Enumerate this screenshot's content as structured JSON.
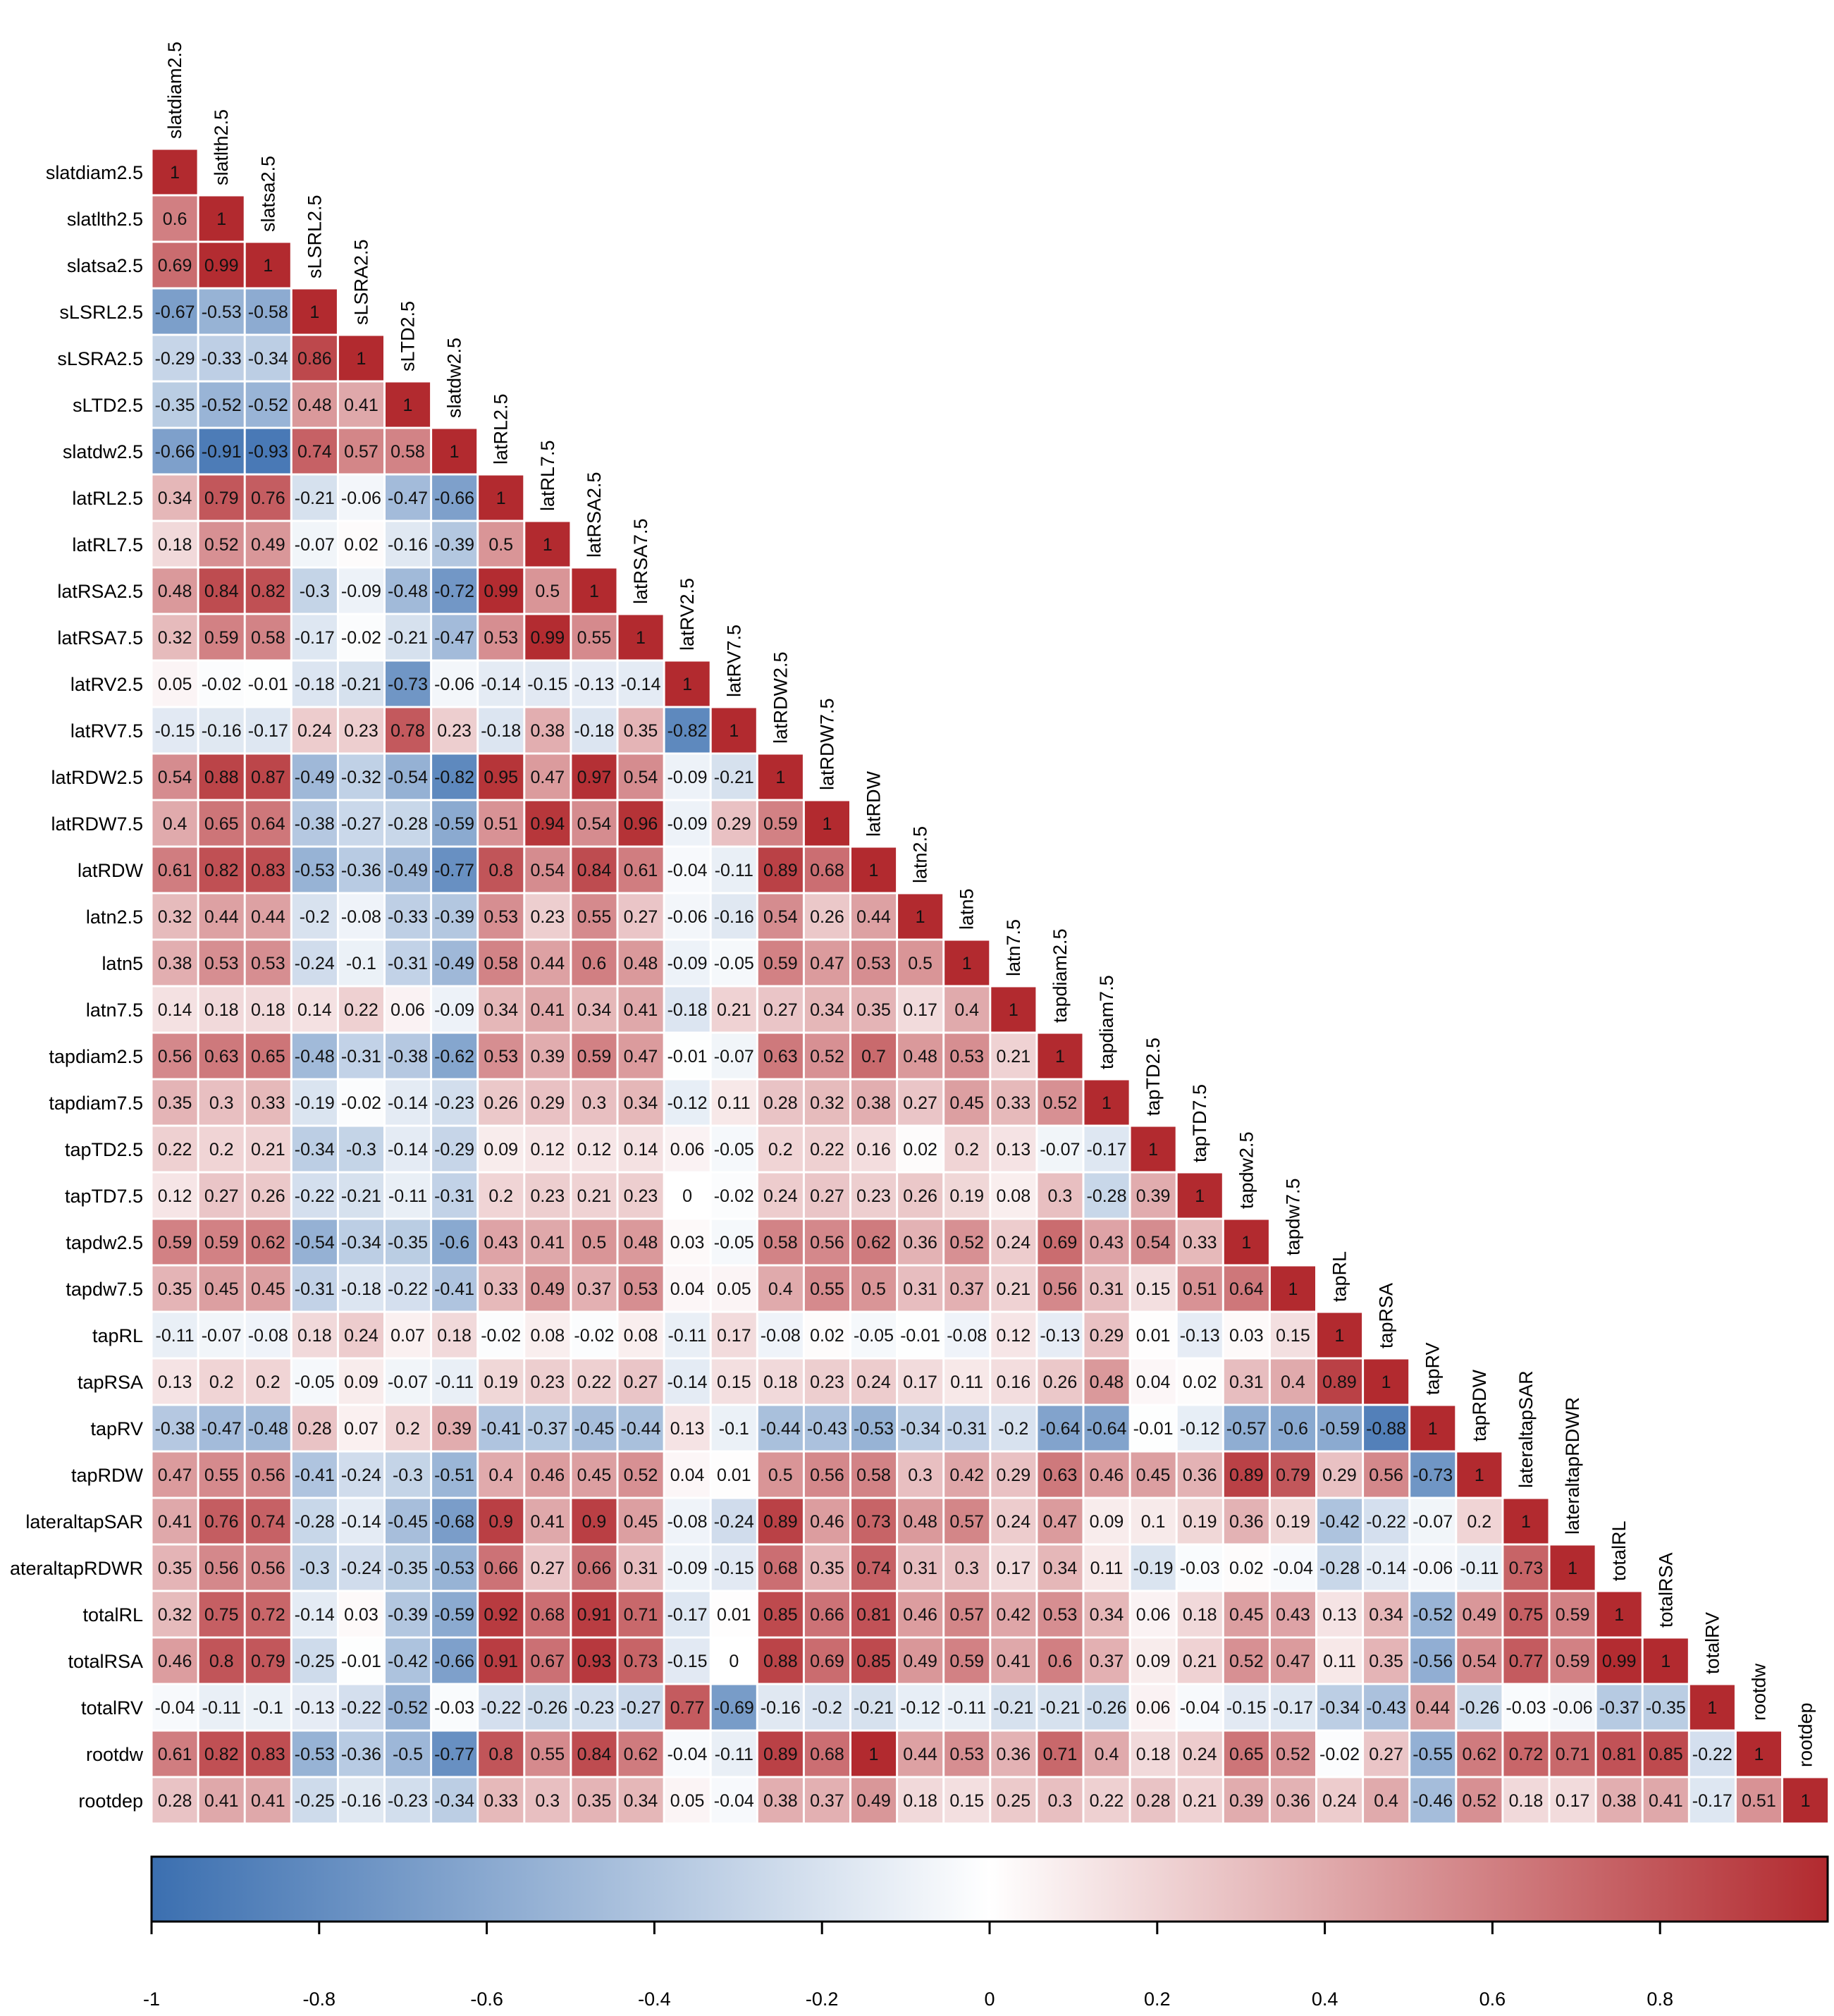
{
  "chart_data": {
    "type": "heatmap",
    "title": "",
    "variables": [
      "slatdiam2.5",
      "slatlth2.5",
      "slatsa2.5",
      "sLSRL2.5",
      "sLSRA2.5",
      "sLTD2.5",
      "slatdw2.5",
      "latRL2.5",
      "latRL7.5",
      "latRSA2.5",
      "latRSA7.5",
      "latRV2.5",
      "latRV7.5",
      "latRDW2.5",
      "latRDW7.5",
      "latRDW",
      "latn2.5",
      "latn5",
      "latn7.5",
      "tapdiam2.5",
      "tapdiam7.5",
      "tapTD2.5",
      "tapTD7.5",
      "tapdw2.5",
      "tapdw7.5",
      "tapRL",
      "tapRSA",
      "tapRV",
      "tapRDW",
      "lateraltapSAR",
      "lateraltapRDWR",
      "totalRL",
      "totalRSA",
      "totalRV",
      "rootdw",
      "rootdep"
    ],
    "row_labels": [
      "slatdiam2.5",
      "slatlth2.5",
      "slatsa2.5",
      "sLSRL2.5",
      "sLSRA2.5",
      "sLTD2.5",
      "slatdw2.5",
      "latRL2.5",
      "latRL7.5",
      "latRSA2.5",
      "latRSA7.5",
      "latRV2.5",
      "latRV7.5",
      "latRDW2.5",
      "latRDW7.5",
      "latRDW",
      "latn2.5",
      "latn5",
      "latn7.5",
      "tapdiam2.5",
      "tapdiam7.5",
      "tapTD2.5",
      "tapTD7.5",
      "tapdw2.5",
      "tapdw7.5",
      "tapRL",
      "tapRSA",
      "tapRV",
      "tapRDW",
      "lateraltapSAR",
      "ateraltapRDWR",
      "totalRL",
      "totalRSA",
      "totalRV",
      "rootdw",
      "rootdep"
    ],
    "matrix_lower": [
      [
        1
      ],
      [
        0.6,
        1
      ],
      [
        0.69,
        0.99,
        1
      ],
      [
        -0.67,
        -0.53,
        -0.58,
        1
      ],
      [
        -0.29,
        -0.33,
        -0.34,
        0.86,
        1
      ],
      [
        -0.35,
        -0.52,
        -0.52,
        0.48,
        0.41,
        1
      ],
      [
        -0.66,
        -0.91,
        -0.93,
        0.74,
        0.57,
        0.58,
        1
      ],
      [
        0.34,
        0.79,
        0.76,
        -0.21,
        -0.06,
        -0.47,
        -0.66,
        1
      ],
      [
        0.18,
        0.52,
        0.49,
        -0.07,
        0.02,
        -0.16,
        -0.39,
        0.5,
        1
      ],
      [
        0.48,
        0.84,
        0.82,
        -0.3,
        -0.09,
        -0.48,
        -0.72,
        0.99,
        0.5,
        1
      ],
      [
        0.32,
        0.59,
        0.58,
        -0.17,
        -0.02,
        -0.21,
        -0.47,
        0.53,
        0.99,
        0.55,
        1
      ],
      [
        0.05,
        -0.02,
        -0.01,
        -0.18,
        -0.21,
        -0.73,
        -0.06,
        -0.14,
        -0.15,
        -0.13,
        -0.14,
        1
      ],
      [
        -0.15,
        -0.16,
        -0.17,
        0.24,
        0.23,
        0.78,
        0.23,
        -0.18,
        0.38,
        -0.18,
        0.35,
        -0.82,
        1
      ],
      [
        0.54,
        0.88,
        0.87,
        -0.49,
        -0.32,
        -0.54,
        -0.82,
        0.95,
        0.47,
        0.97,
        0.54,
        -0.09,
        -0.21,
        1
      ],
      [
        0.4,
        0.65,
        0.64,
        -0.38,
        -0.27,
        -0.28,
        -0.59,
        0.51,
        0.94,
        0.54,
        0.96,
        -0.09,
        0.29,
        0.59,
        1
      ],
      [
        0.61,
        0.82,
        0.83,
        -0.53,
        -0.36,
        -0.49,
        -0.77,
        0.8,
        0.54,
        0.84,
        0.61,
        -0.04,
        -0.11,
        0.89,
        0.68,
        1
      ],
      [
        0.32,
        0.44,
        0.44,
        -0.2,
        -0.08,
        -0.33,
        -0.39,
        0.53,
        0.23,
        0.55,
        0.27,
        -0.06,
        -0.16,
        0.54,
        0.26,
        0.44,
        1
      ],
      [
        0.38,
        0.53,
        0.53,
        -0.24,
        -0.1,
        -0.31,
        -0.49,
        0.58,
        0.44,
        0.6,
        0.48,
        -0.09,
        -0.05,
        0.59,
        0.47,
        0.53,
        0.5,
        1
      ],
      [
        0.14,
        0.18,
        0.18,
        0.14,
        0.22,
        0.06,
        -0.09,
        0.34,
        0.41,
        0.34,
        0.41,
        -0.18,
        0.21,
        0.27,
        0.34,
        0.35,
        0.17,
        0.4,
        1
      ],
      [
        0.56,
        0.63,
        0.65,
        -0.48,
        -0.31,
        -0.38,
        -0.62,
        0.53,
        0.39,
        0.59,
        0.47,
        -0.01,
        -0.07,
        0.63,
        0.52,
        0.7,
        0.48,
        0.53,
        0.21,
        1
      ],
      [
        0.35,
        0.3,
        0.33,
        -0.19,
        -0.02,
        -0.14,
        -0.23,
        0.26,
        0.29,
        0.3,
        0.34,
        -0.12,
        0.11,
        0.28,
        0.32,
        0.38,
        0.27,
        0.45,
        0.33,
        0.52,
        1
      ],
      [
        0.22,
        0.2,
        0.21,
        -0.34,
        -0.3,
        -0.14,
        -0.29,
        0.09,
        0.12,
        0.12,
        0.14,
        0.06,
        -0.05,
        0.2,
        0.22,
        0.16,
        0.02,
        0.2,
        0.13,
        -0.07,
        -0.17,
        1
      ],
      [
        0.12,
        0.27,
        0.26,
        -0.22,
        -0.21,
        -0.11,
        -0.31,
        0.2,
        0.23,
        0.21,
        0.23,
        0,
        -0.02,
        0.24,
        0.27,
        0.23,
        0.26,
        0.19,
        0.08,
        0.3,
        -0.28,
        0.39,
        1
      ],
      [
        0.59,
        0.59,
        0.62,
        -0.54,
        -0.34,
        -0.35,
        -0.6,
        0.43,
        0.41,
        0.5,
        0.48,
        0.03,
        -0.05,
        0.58,
        0.56,
        0.62,
        0.36,
        0.52,
        0.24,
        0.69,
        0.43,
        0.54,
        0.33,
        1
      ],
      [
        0.35,
        0.45,
        0.45,
        -0.31,
        -0.18,
        -0.22,
        -0.41,
        0.33,
        0.49,
        0.37,
        0.53,
        0.04,
        0.05,
        0.4,
        0.55,
        0.5,
        0.31,
        0.37,
        0.21,
        0.56,
        0.31,
        0.15,
        0.51,
        0.64,
        1
      ],
      [
        -0.11,
        -0.07,
        -0.08,
        0.18,
        0.24,
        0.07,
        0.18,
        -0.02,
        0.08,
        -0.02,
        0.08,
        -0.11,
        0.17,
        -0.08,
        0.02,
        -0.05,
        -0.01,
        -0.08,
        0.12,
        -0.13,
        0.29,
        0.01,
        -0.13,
        0.03,
        0.15,
        1
      ],
      [
        0.13,
        0.2,
        0.2,
        -0.05,
        0.09,
        -0.07,
        -0.11,
        0.19,
        0.23,
        0.22,
        0.27,
        -0.14,
        0.15,
        0.18,
        0.23,
        0.24,
        0.17,
        0.11,
        0.16,
        0.26,
        0.48,
        0.04,
        0.02,
        0.31,
        0.4,
        0.89,
        1
      ],
      [
        -0.38,
        -0.47,
        -0.48,
        0.28,
        0.07,
        0.2,
        0.39,
        -0.41,
        -0.37,
        -0.45,
        -0.44,
        0.13,
        -0.1,
        -0.44,
        -0.43,
        -0.53,
        -0.34,
        -0.31,
        -0.2,
        -0.64,
        -0.64,
        -0.01,
        -0.12,
        -0.57,
        -0.6,
        -0.59,
        -0.88,
        1
      ],
      [
        0.47,
        0.55,
        0.56,
        -0.41,
        -0.24,
        -0.3,
        -0.51,
        0.4,
        0.46,
        0.45,
        0.52,
        0.04,
        0.01,
        0.5,
        0.56,
        0.58,
        0.3,
        0.42,
        0.29,
        0.63,
        0.46,
        0.45,
        0.36,
        0.89,
        0.79,
        0.29,
        0.56,
        -0.73,
        1
      ],
      [
        0.41,
        0.76,
        0.74,
        -0.28,
        -0.14,
        -0.45,
        -0.68,
        0.9,
        0.41,
        0.9,
        0.45,
        -0.08,
        -0.24,
        0.89,
        0.46,
        0.73,
        0.48,
        0.57,
        0.24,
        0.47,
        0.09,
        0.1,
        0.19,
        0.36,
        0.19,
        -0.42,
        -0.22,
        -0.07,
        0.2,
        1
      ],
      [
        0.35,
        0.56,
        0.56,
        -0.3,
        -0.24,
        -0.35,
        -0.53,
        0.66,
        0.27,
        0.66,
        0.31,
        -0.09,
        -0.15,
        0.68,
        0.35,
        0.74,
        0.31,
        0.3,
        0.17,
        0.34,
        0.11,
        -0.19,
        -0.03,
        0.02,
        -0.04,
        -0.28,
        -0.14,
        -0.06,
        -0.11,
        0.73,
        1
      ],
      [
        0.32,
        0.75,
        0.72,
        -0.14,
        0.03,
        -0.39,
        -0.59,
        0.92,
        0.68,
        0.91,
        0.71,
        -0.17,
        0.01,
        0.85,
        0.66,
        0.81,
        0.46,
        0.57,
        0.42,
        0.53,
        0.34,
        0.06,
        0.18,
        0.45,
        0.43,
        0.13,
        0.34,
        -0.52,
        0.49,
        0.75,
        0.59,
        1
      ],
      [
        0.46,
        0.8,
        0.79,
        -0.25,
        -0.01,
        -0.42,
        -0.66,
        0.91,
        0.67,
        0.93,
        0.73,
        -0.15,
        0,
        0.88,
        0.69,
        0.85,
        0.49,
        0.59,
        0.41,
        0.6,
        0.37,
        0.09,
        0.21,
        0.52,
        0.47,
        0.11,
        0.35,
        -0.56,
        0.54,
        0.77,
        0.59,
        0.99,
        1
      ],
      [
        -0.04,
        -0.11,
        -0.1,
        -0.13,
        -0.22,
        -0.52,
        -0.03,
        -0.22,
        -0.26,
        -0.23,
        -0.27,
        0.77,
        -0.69,
        -0.16,
        -0.2,
        -0.21,
        -0.12,
        -0.11,
        -0.21,
        -0.21,
        -0.26,
        0.06,
        -0.04,
        -0.15,
        -0.17,
        -0.34,
        -0.43,
        0.44,
        -0.26,
        -0.03,
        -0.06,
        -0.37,
        -0.35,
        1
      ],
      [
        0.61,
        0.82,
        0.83,
        -0.53,
        -0.36,
        -0.5,
        -0.77,
        0.8,
        0.55,
        0.84,
        0.62,
        -0.04,
        -0.11,
        0.89,
        0.68,
        1,
        0.44,
        0.53,
        0.36,
        0.71,
        0.4,
        0.18,
        0.24,
        0.65,
        0.52,
        -0.02,
        0.27,
        -0.55,
        0.62,
        0.72,
        0.71,
        0.81,
        0.85,
        -0.22,
        1
      ],
      [
        0.28,
        0.41,
        0.41,
        -0.25,
        -0.16,
        -0.23,
        -0.34,
        0.33,
        0.3,
        0.35,
        0.34,
        0.05,
        -0.04,
        0.38,
        0.37,
        0.49,
        0.18,
        0.15,
        0.25,
        0.3,
        0.22,
        0.28,
        0.21,
        0.39,
        0.36,
        0.24,
        0.4,
        -0.46,
        0.52,
        0.18,
        0.17,
        0.38,
        0.41,
        -0.17,
        0.51,
        1
      ]
    ],
    "colorbar": {
      "min": -1,
      "max": 1,
      "ticks": [
        "-1",
        "-0.8",
        "-0.6",
        "-0.4",
        "-0.2",
        "0",
        "0.2",
        "0.4",
        "0.6",
        "0.8"
      ],
      "low_color": "#3b6fb0",
      "mid_color": "#ffffff",
      "high_color": "#b22a2f"
    }
  }
}
